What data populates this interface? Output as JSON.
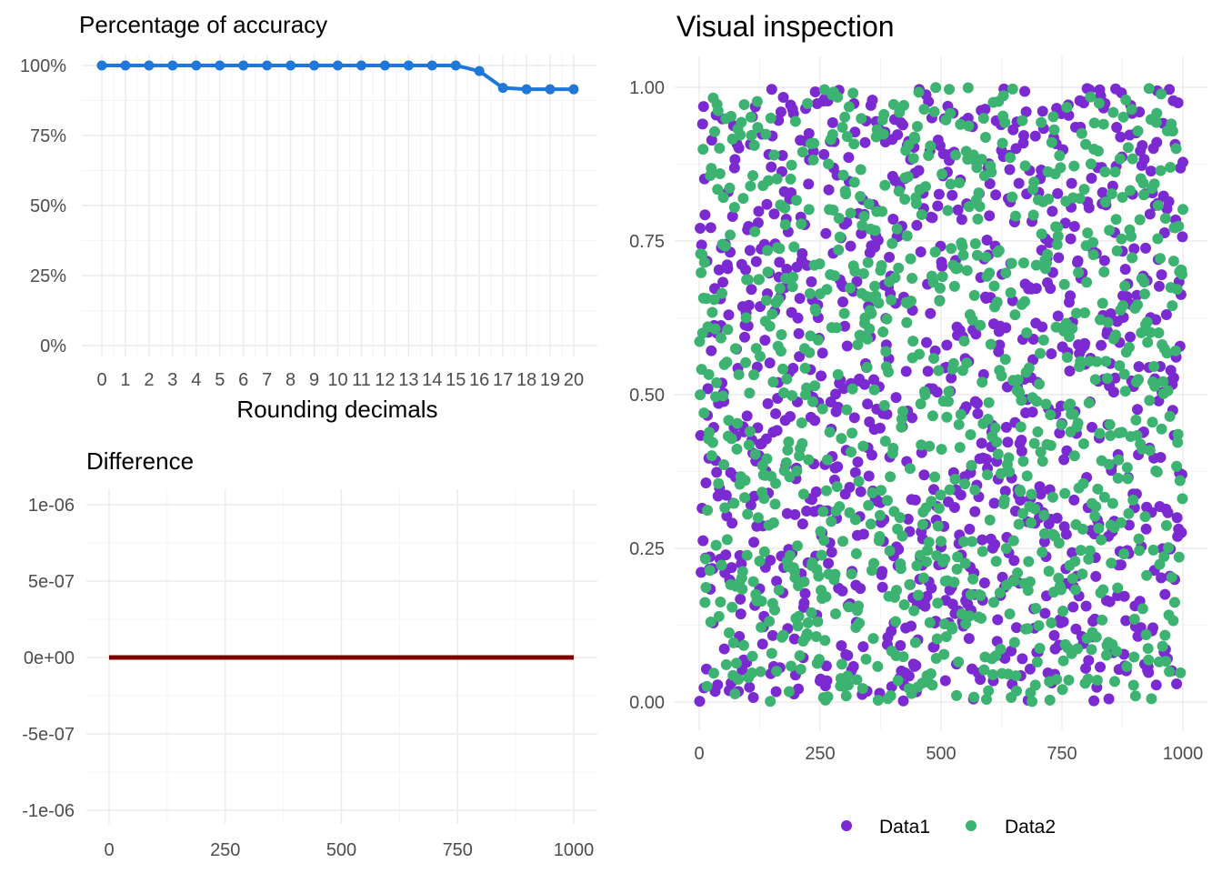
{
  "colors": {
    "grid_major": "#ebebeb",
    "grid_minor": "#f5f5f5",
    "accuracy_line": "#1f78d9",
    "difference_line": "#7f0000",
    "data1": "#7b2ad2",
    "data2": "#3cb371"
  },
  "chart_data": [
    {
      "type": "line",
      "title": "Percentage of accuracy",
      "xlabel": "Rounding decimals",
      "ylabel": "",
      "categories": [
        "0",
        "1",
        "2",
        "3",
        "4",
        "5",
        "6",
        "7",
        "8",
        "9",
        "10",
        "11",
        "12",
        "13",
        "14",
        "15",
        "16",
        "17",
        "18",
        "19",
        "20"
      ],
      "values": [
        1.0,
        1.0,
        1.0,
        1.0,
        1.0,
        1.0,
        1.0,
        1.0,
        1.0,
        1.0,
        1.0,
        1.0,
        1.0,
        1.0,
        1.0,
        1.0,
        0.98,
        0.92,
        0.915,
        0.915,
        0.915
      ],
      "ylim": [
        0,
        1
      ],
      "yticks": [
        0,
        0.25,
        0.5,
        0.75,
        1
      ],
      "ytick_labels": [
        "0%",
        "25%",
        "50%",
        "75%",
        "100%"
      ],
      "markers": true,
      "grid": true
    },
    {
      "type": "line",
      "title": "Difference",
      "xlabel": "",
      "ylabel": "",
      "x_range": [
        0,
        1000
      ],
      "constant_value": 0,
      "xlim": [
        0,
        1000
      ],
      "ylim": [
        -1e-06,
        1e-06
      ],
      "xticks": [
        0,
        250,
        500,
        750,
        1000
      ],
      "xtick_labels": [
        "0",
        "250",
        "500",
        "750",
        "1000"
      ],
      "yticks": [
        -1e-06,
        -5e-07,
        0,
        5e-07,
        1e-06
      ],
      "ytick_labels": [
        "-1e-06",
        "-5e-07",
        "0e+00",
        "5e-07",
        "1e-06"
      ],
      "grid": true
    },
    {
      "type": "scatter",
      "title": "Visual inspection",
      "xlabel": "",
      "ylabel": "",
      "xlim": [
        0,
        1000
      ],
      "ylim": [
        0,
        1
      ],
      "xticks": [
        0,
        250,
        500,
        750,
        1000
      ],
      "xtick_labels": [
        "0",
        "250",
        "500",
        "750",
        "1000"
      ],
      "yticks": [
        0,
        0.25,
        0.5,
        0.75,
        1
      ],
      "ytick_labels": [
        "0.00",
        "0.25",
        "0.50",
        "0.75",
        "1.00"
      ],
      "legend_position": "bottom",
      "legend": [
        "Data1",
        "Data2"
      ],
      "series": [
        {
          "name": "Data1",
          "n_points": 1000,
          "x_range": [
            1,
            1000
          ],
          "y_distribution": "uniform",
          "y_range": [
            0,
            1
          ],
          "overplotted_by": "Data2"
        },
        {
          "name": "Data2",
          "n_points": 1000,
          "x_range": [
            1,
            1000
          ],
          "y_distribution": "uniform",
          "y_range": [
            0,
            1
          ]
        }
      ],
      "grid": true
    }
  ]
}
